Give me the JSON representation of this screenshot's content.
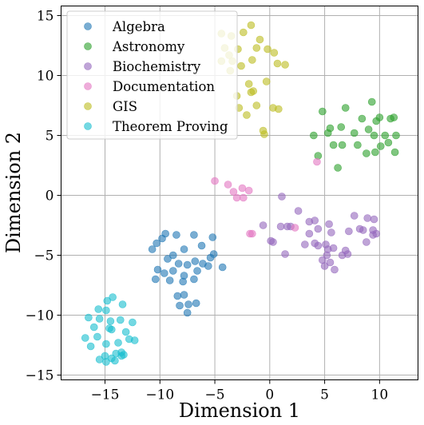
{
  "chart_data": {
    "type": "scatter",
    "title": "",
    "xlabel": "Dimension 1",
    "ylabel": "Dimension 2",
    "xlim": [
      -19,
      13.5
    ],
    "ylim": [
      -15.4,
      15.8
    ],
    "xticks": [
      -15,
      -10,
      -5,
      0,
      5,
      10
    ],
    "yticks": [
      -15,
      -10,
      -5,
      0,
      5,
      10,
      15
    ],
    "xtick_labels": [
      "−15",
      "−10",
      "−5",
      "0",
      "5",
      "10"
    ],
    "ytick_labels": [
      "−15",
      "−10",
      "−5",
      "0",
      "5",
      "10",
      "15"
    ],
    "grid": true,
    "legend_position": "top-left",
    "series": [
      {
        "name": "Algebra",
        "color": "#1f77b4",
        "points": [
          [
            -10.7,
            -4.5
          ],
          [
            -10.3,
            -4.0
          ],
          [
            -9.8,
            -3.6
          ],
          [
            -9.5,
            -3.2
          ],
          [
            -8.5,
            -3.3
          ],
          [
            -6.9,
            -3.3
          ],
          [
            -5.2,
            -3.5
          ],
          [
            -6.2,
            -4.2
          ],
          [
            -7.8,
            -4.5
          ],
          [
            -8.8,
            -5.0
          ],
          [
            -9.3,
            -5.3
          ],
          [
            -8.3,
            -5.7
          ],
          [
            -7.5,
            -5.8
          ],
          [
            -6.8,
            -5.5
          ],
          [
            -6.1,
            -5.7
          ],
          [
            -5.4,
            -5.2
          ],
          [
            -10.2,
            -6.2
          ],
          [
            -9.6,
            -6.5
          ],
          [
            -8.8,
            -6.3
          ],
          [
            -7.8,
            -6.7
          ],
          [
            -6.6,
            -6.3
          ],
          [
            -5.6,
            -5.9
          ],
          [
            -5.1,
            -4.9
          ],
          [
            -4.3,
            -6.0
          ],
          [
            -10.4,
            -7.0
          ],
          [
            -9.1,
            -7.1
          ],
          [
            -7.9,
            -7.2
          ],
          [
            -6.9,
            -7.0
          ],
          [
            -8.4,
            -8.4
          ],
          [
            -7.8,
            -8.3
          ],
          [
            -7.4,
            -9.1
          ],
          [
            -8.2,
            -9.2
          ],
          [
            -7.5,
            -9.8
          ],
          [
            -6.7,
            -9.0
          ]
        ]
      },
      {
        "name": "Astronomy",
        "color": "#2ca02c",
        "points": [
          [
            4.8,
            7.0
          ],
          [
            6.9,
            7.3
          ],
          [
            9.3,
            7.8
          ],
          [
            10.0,
            6.5
          ],
          [
            11.3,
            6.5
          ],
          [
            8.4,
            6.4
          ],
          [
            9.7,
            6.2
          ],
          [
            11.0,
            6.4
          ],
          [
            5.5,
            5.6
          ],
          [
            6.5,
            5.7
          ],
          [
            9.0,
            5.5
          ],
          [
            4.0,
            5.0
          ],
          [
            5.3,
            5.2
          ],
          [
            7.7,
            5.2
          ],
          [
            9.5,
            5.0
          ],
          [
            10.5,
            5.0
          ],
          [
            11.5,
            5.0
          ],
          [
            5.8,
            4.2
          ],
          [
            6.6,
            4.2
          ],
          [
            8.0,
            4.2
          ],
          [
            10.1,
            4.1
          ],
          [
            10.8,
            4.4
          ],
          [
            4.4,
            3.3
          ],
          [
            8.8,
            3.5
          ],
          [
            9.6,
            3.6
          ],
          [
            11.4,
            3.6
          ],
          [
            6.2,
            2.3
          ]
        ]
      },
      {
        "name": "Biochemistry",
        "color": "#9467bd",
        "points": [
          [
            1.1,
            -0.1
          ],
          [
            2.6,
            -1.3
          ],
          [
            3.6,
            -2.2
          ],
          [
            4.1,
            -2.1
          ],
          [
            5.4,
            -2.4
          ],
          [
            7.7,
            -1.7
          ],
          [
            8.9,
            -1.9
          ],
          [
            9.5,
            -2.0
          ],
          [
            1.0,
            -2.6
          ],
          [
            1.6,
            -2.6
          ],
          [
            1.9,
            -2.6
          ],
          [
            3.6,
            -3.2
          ],
          [
            4.4,
            -2.8
          ],
          [
            5.6,
            -3.1
          ],
          [
            7.2,
            -3.0
          ],
          [
            8.2,
            -2.8
          ],
          [
            8.5,
            -2.9
          ],
          [
            9.4,
            -2.9
          ],
          [
            9.4,
            -3.3
          ],
          [
            -0.6,
            -2.5
          ],
          [
            4.1,
            -4.0
          ],
          [
            5.1,
            -4.1
          ],
          [
            5.8,
            -4.4
          ],
          [
            8.8,
            -3.9
          ],
          [
            9.7,
            -3.2
          ],
          [
            0.1,
            -3.8
          ],
          [
            0.3,
            -3.9
          ],
          [
            3.2,
            -4.1
          ],
          [
            4.4,
            -4.2
          ],
          [
            5.3,
            -4.5
          ],
          [
            5.2,
            -5.0
          ],
          [
            6.6,
            -5.0
          ],
          [
            7.1,
            -4.9
          ],
          [
            1.4,
            -4.9
          ],
          [
            4.8,
            -5.4
          ],
          [
            6.9,
            -4.6
          ],
          [
            5.0,
            -5.9
          ],
          [
            5.9,
            -6.2
          ],
          [
            5.5,
            -5.6
          ]
        ]
      },
      {
        "name": "Documentation",
        "color": "#e377c2",
        "points": [
          [
            -5.0,
            1.2
          ],
          [
            -3.8,
            0.9
          ],
          [
            -3.3,
            0.3
          ],
          [
            -2.5,
            0.6
          ],
          [
            -1.9,
            0.4
          ],
          [
            -2.4,
            -0.2
          ],
          [
            -3.0,
            -0.2
          ],
          [
            -1.6,
            -3.2
          ],
          [
            -1.8,
            -3.2
          ],
          [
            2.3,
            -2.7
          ],
          [
            4.3,
            2.8
          ]
        ]
      },
      {
        "name": "GIS",
        "color": "#bcbd22",
        "points": [
          [
            -4.4,
            13.5
          ],
          [
            -3.5,
            13.3
          ],
          [
            -2.4,
            13.6
          ],
          [
            -1.7,
            14.2
          ],
          [
            -0.9,
            13.0
          ],
          [
            -0.2,
            12.2
          ],
          [
            -4.1,
            12.3
          ],
          [
            -3.7,
            11.7
          ],
          [
            -2.9,
            12.2
          ],
          [
            -1.2,
            12.3
          ],
          [
            0.4,
            11.9
          ],
          [
            -3.4,
            11.2
          ],
          [
            -2.6,
            10.8
          ],
          [
            -1.6,
            11.3
          ],
          [
            0.7,
            11.0
          ],
          [
            1.4,
            10.9
          ],
          [
            -4.4,
            11.2
          ],
          [
            -3.6,
            10.4
          ],
          [
            -1.9,
            9.3
          ],
          [
            -0.3,
            9.5
          ],
          [
            -3.0,
            8.3
          ],
          [
            -1.7,
            8.6
          ],
          [
            -1.5,
            8.7
          ],
          [
            -2.8,
            7.3
          ],
          [
            0.3,
            7.3
          ],
          [
            0.8,
            7.2
          ],
          [
            -1.2,
            7.5
          ],
          [
            -2.1,
            6.7
          ],
          [
            -0.6,
            5.4
          ],
          [
            -0.5,
            5.1
          ]
        ]
      },
      {
        "name": "Theorem Proving",
        "color": "#17becf",
        "points": [
          [
            -14.3,
            -8.5
          ],
          [
            -14.8,
            -8.8
          ],
          [
            -13.4,
            -9.1
          ],
          [
            -15.6,
            -9.5
          ],
          [
            -14.9,
            -9.6
          ],
          [
            -16.5,
            -10.2
          ],
          [
            -15.5,
            -10.3
          ],
          [
            -14.5,
            -10.5
          ],
          [
            -13.6,
            -10.4
          ],
          [
            -12.5,
            -10.6
          ],
          [
            -16.0,
            -11.0
          ],
          [
            -14.6,
            -11.1
          ],
          [
            -14.4,
            -11.2
          ],
          [
            -13.1,
            -11.4
          ],
          [
            -16.8,
            -11.9
          ],
          [
            -15.7,
            -11.8
          ],
          [
            -12.8,
            -12.0
          ],
          [
            -12.3,
            -12.1
          ],
          [
            -13.8,
            -12.3
          ],
          [
            -16.3,
            -12.6
          ],
          [
            -14.9,
            -12.4
          ],
          [
            -13.5,
            -13.1
          ],
          [
            -14.0,
            -13.2
          ],
          [
            -13.5,
            -13.4
          ],
          [
            -14.4,
            -13.6
          ],
          [
            -15.0,
            -13.4
          ],
          [
            -14.1,
            -13.8
          ],
          [
            -15.5,
            -13.7
          ],
          [
            -14.9,
            -13.9
          ],
          [
            -13.3,
            -13.3
          ]
        ]
      }
    ]
  }
}
